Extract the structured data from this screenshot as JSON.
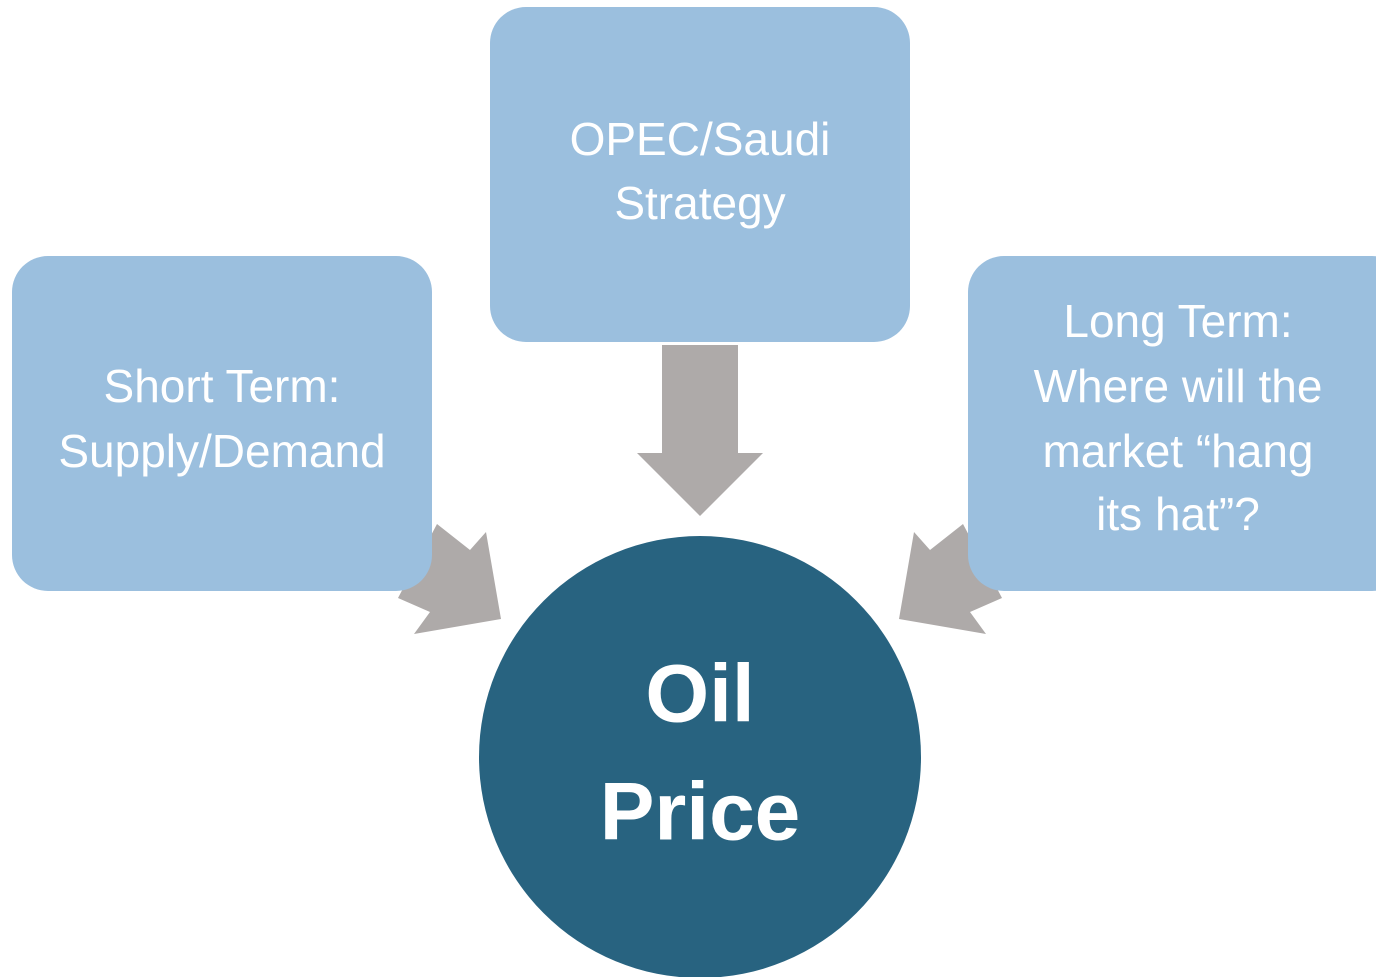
{
  "nodes": [
    {
      "lines": [
        "OPEC/Saudi",
        "Strategy"
      ]
    },
    {
      "lines": [
        "Short Term:",
        "Supply/Demand"
      ]
    },
    {
      "lines": [
        "Long Term:",
        "Where will the",
        "market “hang",
        "its hat”?"
      ]
    },
    {
      "lines": [
        "Oil",
        "Price"
      ]
    }
  ]
}
